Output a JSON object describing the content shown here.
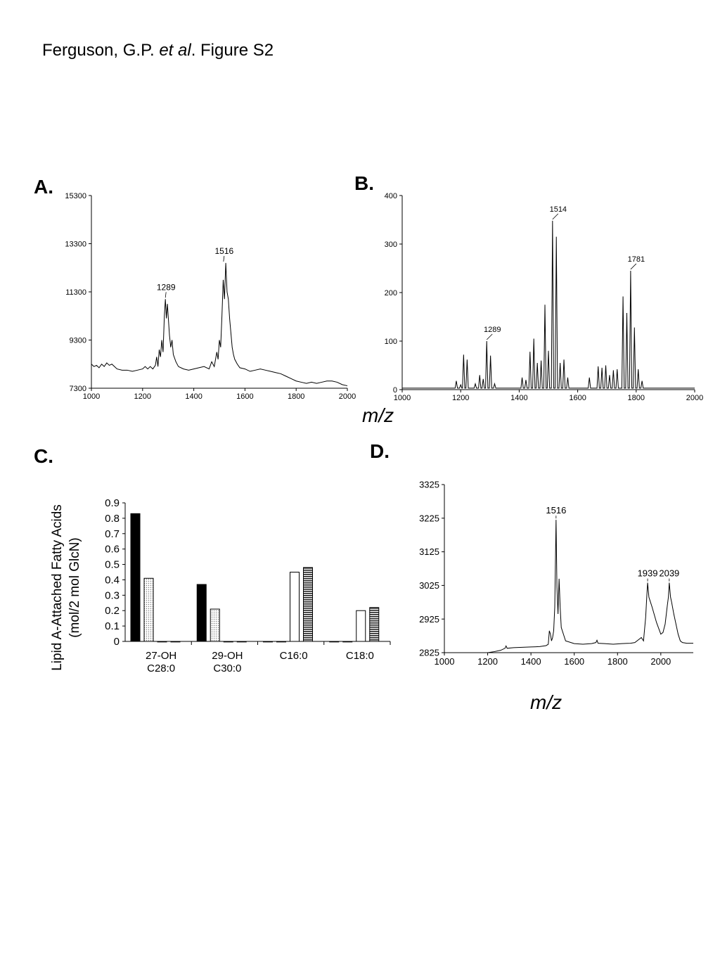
{
  "figure": {
    "title_prefix": "Ferguson, G.P. ",
    "title_italic": "et al",
    "title_suffix": ". Figure S2"
  },
  "chart_data": [
    {
      "panel": "A.",
      "type": "line",
      "xlim": [
        1000,
        2000
      ],
      "ylim": [
        7300,
        15300
      ],
      "x_ticks": [
        1000,
        1200,
        1400,
        1600,
        1800,
        2000
      ],
      "y_ticks": [
        7300,
        9300,
        11300,
        13300,
        15300
      ],
      "xlabel": "",
      "ylabel": "",
      "annotations": [
        {
          "label": "1289",
          "x": 1289,
          "y": 11000
        },
        {
          "label": "1516",
          "x": 1516,
          "y": 12500
        }
      ],
      "series": [
        {
          "x": [
            1000,
            1010,
            1020,
            1030,
            1040,
            1050,
            1060,
            1070,
            1080,
            1090,
            1100,
            1120,
            1140,
            1160,
            1180,
            1200,
            1210,
            1220,
            1230,
            1240,
            1250,
            1255,
            1260,
            1265,
            1270,
            1275,
            1280,
            1285,
            1289,
            1293,
            1297,
            1300,
            1305,
            1310,
            1315,
            1320,
            1330,
            1340,
            1360,
            1380,
            1400,
            1420,
            1440,
            1460,
            1470,
            1480,
            1490,
            1495,
            1500,
            1505,
            1510,
            1515,
            1520,
            1525,
            1530,
            1535,
            1540,
            1545,
            1550,
            1555,
            1560,
            1570,
            1580,
            1600,
            1620,
            1640,
            1660,
            1680,
            1700,
            1720,
            1740,
            1760,
            1780,
            1800,
            1820,
            1840,
            1860,
            1880,
            1900,
            1920,
            1940,
            1960,
            1980,
            2000
          ],
          "values": [
            8300,
            8200,
            8250,
            8150,
            8300,
            8200,
            8350,
            8250,
            8300,
            8200,
            8100,
            8050,
            8050,
            8000,
            8050,
            8100,
            8200,
            8100,
            8200,
            8100,
            8250,
            8600,
            8200,
            8900,
            8600,
            9300,
            8800,
            10300,
            11000,
            10200,
            10800,
            10300,
            9500,
            9000,
            9300,
            8700,
            8400,
            8200,
            8100,
            8050,
            8100,
            8150,
            8200,
            8100,
            8400,
            8200,
            8800,
            8500,
            9300,
            9000,
            10300,
            11800,
            11000,
            12500,
            11300,
            11000,
            10200,
            9600,
            9000,
            8700,
            8500,
            8300,
            8150,
            8100,
            8000,
            8050,
            8100,
            8050,
            8000,
            7950,
            7900,
            7800,
            7700,
            7600,
            7550,
            7500,
            7550,
            7500,
            7550,
            7600,
            7600,
            7550,
            7450,
            7400
          ]
        }
      ]
    },
    {
      "panel": "B.",
      "type": "line",
      "xlim": [
        1000,
        2000
      ],
      "ylim": [
        0,
        400
      ],
      "x_ticks": [
        1000,
        1200,
        1400,
        1600,
        1800,
        2000
      ],
      "y_ticks": [
        0,
        100,
        200,
        300,
        400
      ],
      "xlabel": "m/z",
      "ylabel": "",
      "annotations": [
        {
          "label": "1514",
          "x": 1514,
          "y": 348
        },
        {
          "label": "1781",
          "x": 1781,
          "y": 245
        },
        {
          "label": "1289",
          "x": 1289,
          "y": 100
        }
      ],
      "peaks": [
        {
          "x": 1185,
          "y": 18
        },
        {
          "x": 1200,
          "y": 10
        },
        {
          "x": 1210,
          "y": 72
        },
        {
          "x": 1222,
          "y": 62
        },
        {
          "x": 1250,
          "y": 12
        },
        {
          "x": 1265,
          "y": 30
        },
        {
          "x": 1277,
          "y": 22
        },
        {
          "x": 1289,
          "y": 100
        },
        {
          "x": 1302,
          "y": 70
        },
        {
          "x": 1316,
          "y": 12
        },
        {
          "x": 1410,
          "y": 25
        },
        {
          "x": 1423,
          "y": 20
        },
        {
          "x": 1437,
          "y": 78
        },
        {
          "x": 1450,
          "y": 105
        },
        {
          "x": 1462,
          "y": 55
        },
        {
          "x": 1475,
          "y": 60
        },
        {
          "x": 1488,
          "y": 175
        },
        {
          "x": 1500,
          "y": 80
        },
        {
          "x": 1514,
          "y": 348
        },
        {
          "x": 1527,
          "y": 315
        },
        {
          "x": 1540,
          "y": 55
        },
        {
          "x": 1553,
          "y": 62
        },
        {
          "x": 1566,
          "y": 25
        },
        {
          "x": 1640,
          "y": 25
        },
        {
          "x": 1670,
          "y": 48
        },
        {
          "x": 1683,
          "y": 45
        },
        {
          "x": 1696,
          "y": 50
        },
        {
          "x": 1709,
          "y": 30
        },
        {
          "x": 1722,
          "y": 40
        },
        {
          "x": 1735,
          "y": 42
        },
        {
          "x": 1755,
          "y": 192
        },
        {
          "x": 1768,
          "y": 158
        },
        {
          "x": 1781,
          "y": 245
        },
        {
          "x": 1794,
          "y": 128
        },
        {
          "x": 1807,
          "y": 42
        },
        {
          "x": 1820,
          "y": 18
        }
      ],
      "baseline": 3
    },
    {
      "panel": "C.",
      "type": "bar",
      "categories": [
        "27-OH C28:0",
        "29-OH C30:0",
        "C16:0",
        "C18:0"
      ],
      "ylabel": "Lipid A-Attached Fatty Acids (mol/2 mol GlcN)",
      "ylim": [
        0,
        0.9
      ],
      "y_ticks": [
        "0",
        "0.1",
        "0.2",
        "0.3",
        "0.4",
        "0.5",
        "0.6",
        "0.7",
        "0.8",
        "0.9"
      ],
      "series": [
        {
          "fill": "black",
          "values": [
            0.83,
            0.37,
            0,
            0
          ]
        },
        {
          "fill": "dotted",
          "values": [
            0.41,
            0.21,
            0,
            0
          ]
        },
        {
          "fill": "white",
          "values": [
            0,
            0,
            0.45,
            0.2
          ]
        },
        {
          "fill": "striped",
          "values": [
            0,
            0,
            0.48,
            0.22
          ]
        }
      ]
    },
    {
      "panel": "D.",
      "type": "line",
      "xlim": [
        1000,
        2150
      ],
      "ylim": [
        2825,
        3325
      ],
      "x_ticks": [
        1000,
        1200,
        1400,
        1600,
        1800,
        2000
      ],
      "y_ticks": [
        2825,
        2925,
        3025,
        3125,
        3225,
        3325
      ],
      "xlabel": "m/z",
      "ylabel": "",
      "annotations": [
        {
          "label": "1516",
          "x": 1516,
          "y": 3220
        },
        {
          "label": "1939",
          "x": 1939,
          "y": 3033
        },
        {
          "label": "2039",
          "x": 2039,
          "y": 3033
        }
      ],
      "series": [
        {
          "x": [
            1200,
            1230,
            1260,
            1280,
            1285,
            1290,
            1320,
            1360,
            1400,
            1440,
            1470,
            1480,
            1485,
            1490,
            1495,
            1500,
            1505,
            1510,
            1516,
            1520,
            1525,
            1530,
            1535,
            1540,
            1560,
            1600,
            1640,
            1680,
            1700,
            1705,
            1710,
            1740,
            1780,
            1820,
            1860,
            1880,
            1900,
            1910,
            1920,
            1930,
            1935,
            1939,
            1945,
            1950,
            1960,
            1980,
            2000,
            2010,
            2020,
            2030,
            2035,
            2039,
            2045,
            2050,
            2060,
            2080,
            2090,
            2100,
            2120,
            2150
          ],
          "values": [
            2825,
            2828,
            2832,
            2838,
            2845,
            2838,
            2840,
            2841,
            2842,
            2843,
            2846,
            2850,
            2890,
            2880,
            2860,
            2870,
            2890,
            2960,
            3220,
            3020,
            2940,
            3045,
            2960,
            2900,
            2860,
            2852,
            2850,
            2852,
            2855,
            2862,
            2853,
            2852,
            2850,
            2852,
            2853,
            2855,
            2865,
            2870,
            2860,
            2930,
            2990,
            3033,
            2990,
            2980,
            2960,
            2915,
            2880,
            2885,
            2910,
            2965,
            2990,
            3033,
            2990,
            2975,
            2940,
            2880,
            2860,
            2855,
            2853,
            2853
          ]
        }
      ]
    }
  ]
}
